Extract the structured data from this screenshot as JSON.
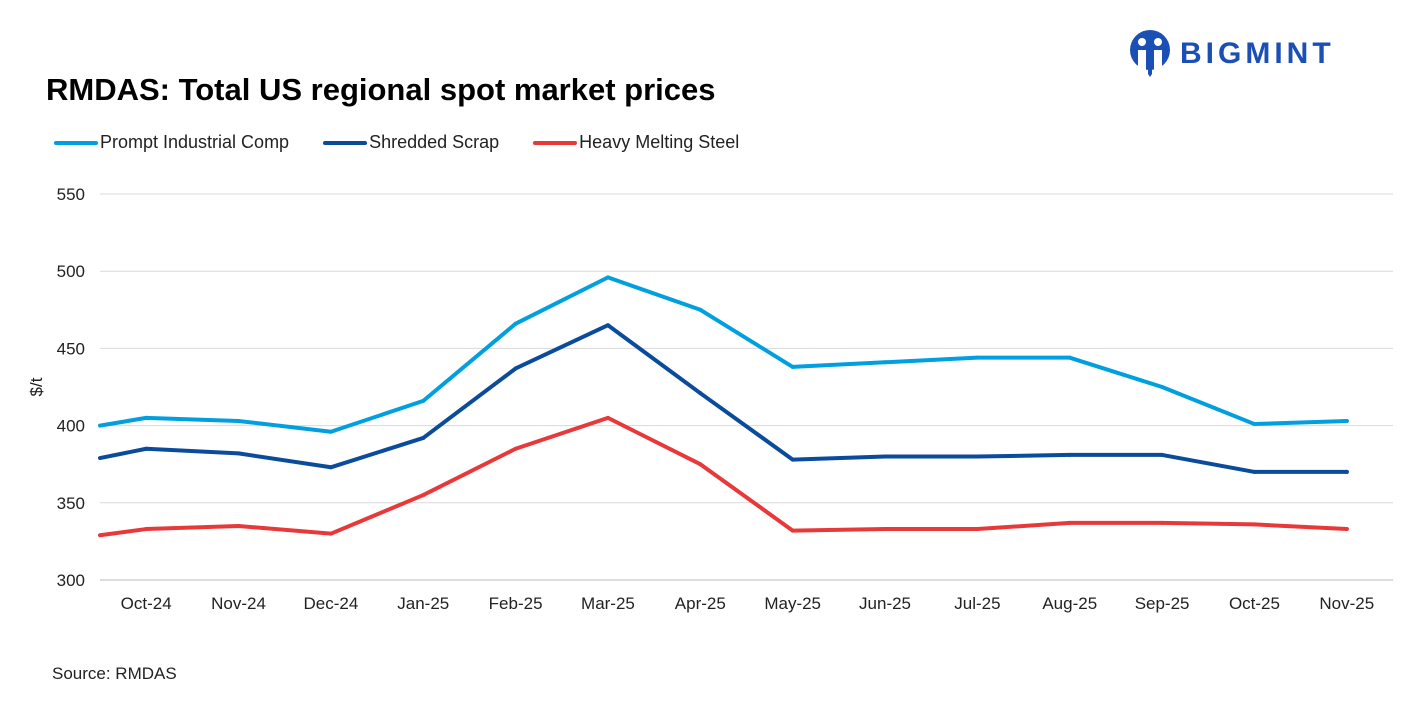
{
  "title": "RMDAS: Total US regional spot market prices",
  "logo_text": "BIGMINT",
  "source": "Source: RMDAS",
  "chart_data": {
    "type": "line",
    "title": "RMDAS: Total US regional spot market prices",
    "ylabel": "$/t",
    "xlabel": "",
    "ylim": [
      300,
      550
    ],
    "yticks": [
      300,
      350,
      400,
      450,
      500,
      550
    ],
    "grid": true,
    "legend_position": "top-left",
    "categories": [
      "Oct-24",
      "Nov-24",
      "Dec-24",
      "Jan-25",
      "Feb-25",
      "Mar-25",
      "Apr-25",
      "May-25",
      "Jun-25",
      "Jul-25",
      "Aug-25",
      "Sep-25",
      "Oct-25",
      "Nov-25"
    ],
    "series": [
      {
        "name": "Prompt Industrial Comp",
        "color": "#00a0e0",
        "start_value": 400,
        "values": [
          405,
          403,
          396,
          416,
          466,
          496,
          475,
          438,
          441,
          444,
          444,
          425,
          401,
          403
        ]
      },
      {
        "name": "Shredded Scrap",
        "color": "#0a4b9c",
        "start_value": 379,
        "values": [
          385,
          382,
          373,
          392,
          437,
          465,
          421,
          378,
          380,
          380,
          381,
          381,
          370,
          370
        ]
      },
      {
        "name": "Heavy Melting Steel",
        "color": "#e8393a",
        "start_value": 329,
        "values": [
          333,
          335,
          330,
          355,
          385,
          405,
          375,
          332,
          333,
          333,
          337,
          337,
          336,
          333
        ]
      }
    ]
  }
}
